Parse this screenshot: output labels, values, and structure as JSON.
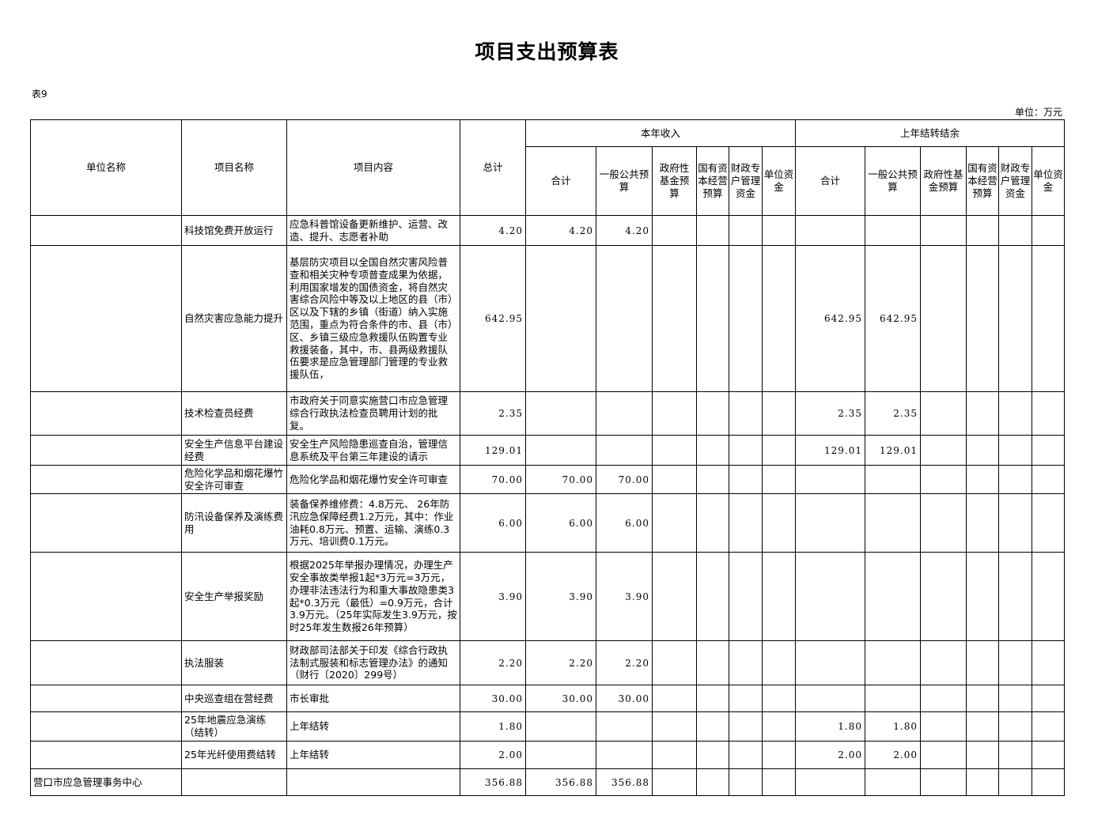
{
  "title": "项目支出预算表",
  "table_no": "表9",
  "unit": "单位：万元",
  "headers": {
    "unit_name": "单位名称",
    "project_name": "项目名称",
    "project_content": "项目内容",
    "total": "总计",
    "current_year": "本年收入",
    "last_year": "上年结转结余",
    "sub": [
      "合计",
      "一般公共预算",
      "政府性基金预算",
      "国有资本经营预算",
      "财政专户管理资金",
      "单位资金"
    ]
  },
  "rows": [
    {
      "cells": [
        "",
        "科技馆免费开放运行",
        "应急科普馆设备更新维护、运营、改造、提升、志愿者补助",
        "4.20",
        "4.20",
        "4.20",
        "",
        "",
        "",
        "",
        "",
        "",
        "",
        "",
        "",
        ""
      ]
    },
    {
      "cells": [
        "",
        "自然灾害应急能力提升",
        "基层防灾项目以全国自然灾害风险普查和相关灾种专项普查成果为依据，利用国家增发的国债资金，将自然灾害综合风险中等及以上地区的县（市）区以及下辖的乡镇（街道）纳入实施范围，重点为符合条件的市、县（市）区、乡镇三级应急救援队伍购置专业救援装备，其中，市、县两级救援队伍要求是应急管理部门管理的专业救援队伍，",
        "642.95",
        "",
        "",
        "",
        "",
        "",
        "",
        "642.95",
        "642.95",
        "",
        "",
        "",
        ""
      ]
    },
    {
      "cells": [
        "",
        "技术检查员经费",
        "市政府关于同意实施营口市应急管理综合行政执法检查员聘用计划的批复。",
        "2.35",
        "",
        "",
        "",
        "",
        "",
        "",
        "2.35",
        "2.35",
        "",
        "",
        "",
        ""
      ]
    },
    {
      "cells": [
        "",
        "安全生产信息平台建设经费",
        "安全生产风险隐患巡查自治，管理信息系统及平台第三年建设的请示",
        "129.01",
        "",
        "",
        "",
        "",
        "",
        "",
        "129.01",
        "129.01",
        "",
        "",
        "",
        ""
      ]
    },
    {
      "cells": [
        "",
        "危险化学品和烟花爆竹安全许可审查",
        "危险化学品和烟花爆竹安全许可审查",
        "70.00",
        "70.00",
        "70.00",
        "",
        "",
        "",
        "",
        "",
        "",
        "",
        "",
        "",
        ""
      ]
    },
    {
      "cells": [
        "",
        "防汛设备保养及演练费用",
        "装备保养维修费：4.8万元、 26年防汛应急保障经费1.2万元，其中：作业油耗0.8万元、预置、运输、演练0.3万元、培训费0.1万元。",
        "6.00",
        "6.00",
        "6.00",
        "",
        "",
        "",
        "",
        "",
        "",
        "",
        "",
        "",
        ""
      ]
    },
    {
      "cells": [
        "",
        "安全生产举报奖励",
        "根据2025年举报办理情况，办理生产安全事故类举报1起*3万元=3万元，办理非法违法行为和重大事故隐患类3起*0.3万元（最低）=0.9万元，合计3.9万元。（25年实际发生3.9万元，按时25年发生数报26年预算）",
        "3.90",
        "3.90",
        "3.90",
        "",
        "",
        "",
        "",
        "",
        "",
        "",
        "",
        "",
        ""
      ]
    },
    {
      "cells": [
        "",
        "执法服装",
        "财政部司法部关于印发《综合行政执法制式服装和标志管理办法》的通知（财行〔2020〕299号）",
        "2.20",
        "2.20",
        "2.20",
        "",
        "",
        "",
        "",
        "",
        "",
        "",
        "",
        "",
        ""
      ]
    },
    {
      "cells": [
        "",
        "中央巡查组在营经费",
        "市长审批",
        "30.00",
        "30.00",
        "30.00",
        "",
        "",
        "",
        "",
        "",
        "",
        "",
        "",
        "",
        ""
      ]
    },
    {
      "cells": [
        "",
        "25年地震应急演练（结转）",
        "上年结转",
        "1.80",
        "",
        "",
        "",
        "",
        "",
        "",
        "1.80",
        "1.80",
        "",
        "",
        "",
        ""
      ]
    },
    {
      "cells": [
        "",
        "25年光纤使用费结转",
        "上年结转",
        "2.00",
        "",
        "",
        "",
        "",
        "",
        "",
        "2.00",
        "2.00",
        "",
        "",
        "",
        ""
      ]
    },
    {
      "cells": [
        "营口市应急管理事务中心",
        "",
        "",
        "356.88",
        "356.88",
        "356.88",
        "",
        "",
        "",
        "",
        "",
        "",
        "",
        "",
        "",
        ""
      ]
    }
  ]
}
